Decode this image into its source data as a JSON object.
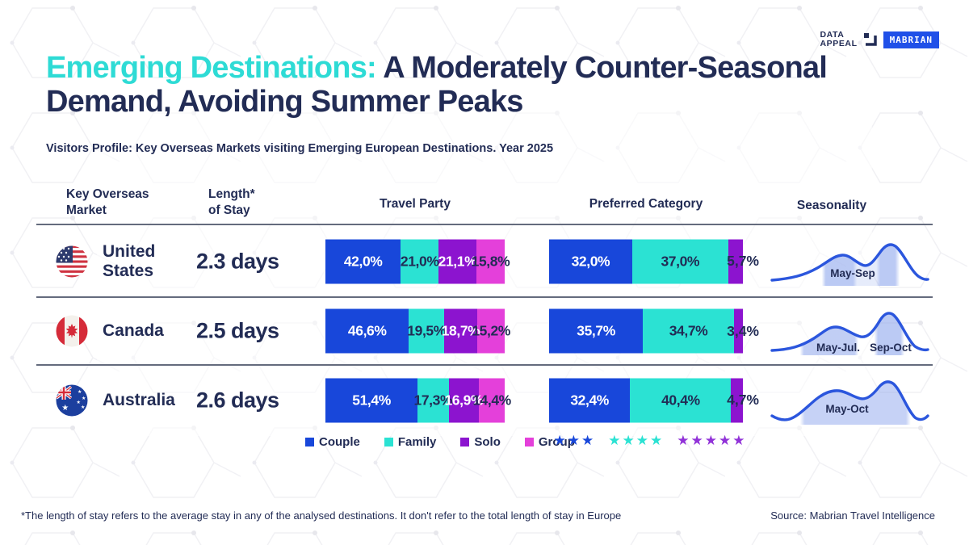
{
  "logo": {
    "line1": "DATA",
    "line2": "APPEAL",
    "badge": "MABRIAN"
  },
  "title": {
    "highlight": "Emerging Destinations: ",
    "rest": "A Moderately Counter-Seasonal Demand, Avoiding Summer Peaks"
  },
  "subtitle": "Visitors Profile: Key Overseas Markets visiting Emerging European Destinations. Year 2025",
  "table": {
    "headers": {
      "market_l1": "Key Overseas",
      "market_l2": "Market",
      "stay_l1": "Length*",
      "stay_l2": "of Stay",
      "travel_party": "Travel Party",
      "preferred_category": "Preferred Category",
      "seasonality": "Seasonality"
    }
  },
  "rows": [
    {
      "country": "United States",
      "stay": "2.3 days",
      "travel_party": {
        "values": [
          42.0,
          21.0,
          21.1,
          15.8
        ],
        "labels": [
          "42,0%",
          "21,0%",
          "21,1%",
          "15,8%"
        ]
      },
      "preferred": {
        "values": [
          32.0,
          37.0,
          5.7
        ],
        "labels": [
          "32,0%",
          "37,0%",
          "5,7%"
        ]
      },
      "season_labels": [
        {
          "text": "May-Sep"
        }
      ]
    },
    {
      "country": "Canada",
      "stay": "2.5 days",
      "travel_party": {
        "values": [
          46.6,
          19.5,
          18.7,
          15.2
        ],
        "labels": [
          "46,6%",
          "19,5%",
          "18,7%",
          "15,2%"
        ]
      },
      "preferred": {
        "values": [
          35.7,
          34.7,
          3.4
        ],
        "labels": [
          "35,7%",
          "34,7%",
          "3,4%"
        ]
      },
      "season_labels": [
        {
          "text": "May-Jul."
        },
        {
          "text": "Sep-Oct"
        }
      ]
    },
    {
      "country": "Australia",
      "stay": "2.6 days",
      "travel_party": {
        "values": [
          51.4,
          17.3,
          16.9,
          14.4
        ],
        "labels": [
          "51,4%",
          "17,3%",
          "16,9%",
          "14,4%"
        ]
      },
      "preferred": {
        "values": [
          32.4,
          40.4,
          4.7
        ],
        "labels": [
          "32,4%",
          "40,4%",
          "4,7%"
        ]
      },
      "season_labels": [
        {
          "text": "May-Oct"
        }
      ]
    }
  ],
  "legend": {
    "items": [
      {
        "label": "Couple",
        "color": "#1847da"
      },
      {
        "label": "Family",
        "color": "#2be2d3"
      },
      {
        "label": "Solo",
        "color": "#8c14cf"
      },
      {
        "label": "Group",
        "color": "#e440da"
      }
    ],
    "stars": [
      {
        "count": 3,
        "color": "#1847da"
      },
      {
        "count": 4,
        "color": "#2be2d3"
      },
      {
        "count": 5,
        "color": "#9132d8"
      }
    ]
  },
  "footer": {
    "note": "*The length of stay refers to the average stay in any of the analysed destinations. It don't refer to the total length of stay in Europe",
    "source": "Source: Mabrian Travel Intelligence"
  },
  "colors": {
    "navy": "#222c55",
    "teal": "#2edbd5",
    "segments": [
      "#1847da",
      "#2be2d3",
      "#8c14cf",
      "#e440da"
    ],
    "segment_text_travel": [
      "#ffffff",
      "#222c55",
      "#ffffff",
      "#222c55"
    ],
    "segment_text_pref": [
      "#ffffff",
      "#222c55"
    ],
    "badge_blue": "#2050e8",
    "curve_blue": "#2b56dd",
    "band_blue": "#8ea6ec"
  },
  "chart_data": [
    {
      "type": "bar",
      "subtype": "stacked-horizontal",
      "title": "Travel Party",
      "unit": "%",
      "categories": [
        "United States",
        "Canada",
        "Australia"
      ],
      "series": [
        {
          "name": "Couple",
          "values": [
            42.0,
            46.6,
            51.4
          ]
        },
        {
          "name": "Family",
          "values": [
            21.0,
            19.5,
            17.3
          ]
        },
        {
          "name": "Solo",
          "values": [
            21.1,
            18.7,
            16.9
          ]
        },
        {
          "name": "Group",
          "values": [
            15.8,
            15.2,
            14.4
          ]
        }
      ],
      "legend_position": "bottom"
    },
    {
      "type": "bar",
      "subtype": "stacked-horizontal",
      "title": "Preferred Category",
      "unit": "%",
      "categories": [
        "United States",
        "Canada",
        "Australia"
      ],
      "series": [
        {
          "name": "3-star",
          "values": [
            32.0,
            35.7,
            32.4
          ]
        },
        {
          "name": "4-star",
          "values": [
            37.0,
            34.7,
            40.4
          ]
        },
        {
          "name": "5-star",
          "values": [
            5.7,
            3.4,
            4.7
          ]
        }
      ],
      "legend_position": "bottom"
    },
    {
      "type": "line",
      "title": "Seasonality",
      "description": "Twin-peak monthly demand curves with highlighted ranges",
      "annotations": {
        "United States": [
          "May-Sep"
        ],
        "Canada": [
          "May-Jul.",
          "Sep-Oct"
        ],
        "Australia": [
          "May-Oct"
        ]
      }
    },
    {
      "type": "table",
      "title": "Length of Stay",
      "categories": [
        "United States",
        "Canada",
        "Australia"
      ],
      "values": [
        "2.3 days",
        "2.5 days",
        "2.6 days"
      ]
    }
  ]
}
